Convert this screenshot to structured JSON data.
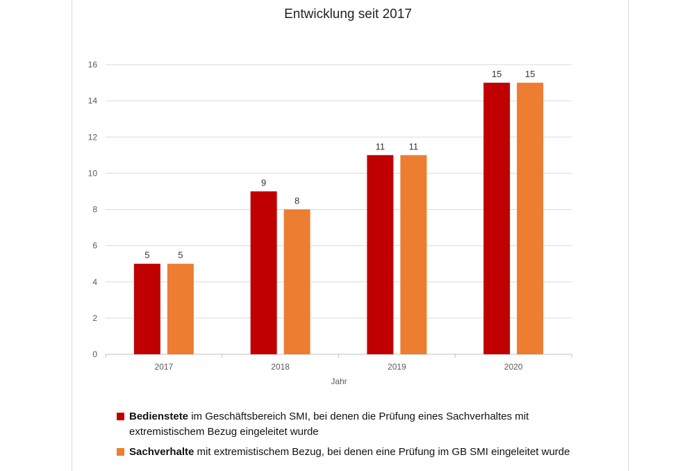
{
  "chart_data": {
    "type": "bar",
    "title": "Entwicklung seit 2017",
    "xlabel": "Jahr",
    "ylabel": "",
    "categories": [
      "2017",
      "2018",
      "2019",
      "2020"
    ],
    "ylim": [
      0,
      16
    ],
    "yticks": [
      0,
      2,
      4,
      6,
      8,
      10,
      12,
      14,
      16
    ],
    "grid": true,
    "legend_position": "bottom",
    "series": [
      {
        "name": "Bedienstete",
        "legend_bold": "Bedienstete",
        "legend_rest": " im Geschäftsbereich SMI, bei denen die Prüfung eines Sachverhaltes mit extremistischem Bezug eingeleitet wurde",
        "color": "#C00000",
        "values": [
          5,
          9,
          11,
          15
        ]
      },
      {
        "name": "Sachverhalte",
        "legend_bold": "Sachverhalte",
        "legend_rest": " mit extremistischem Bezug, bei denen eine Prüfung im GB SMI eingeleitet wurde",
        "color": "#ED7D31",
        "values": [
          5,
          8,
          11,
          15
        ]
      }
    ]
  }
}
